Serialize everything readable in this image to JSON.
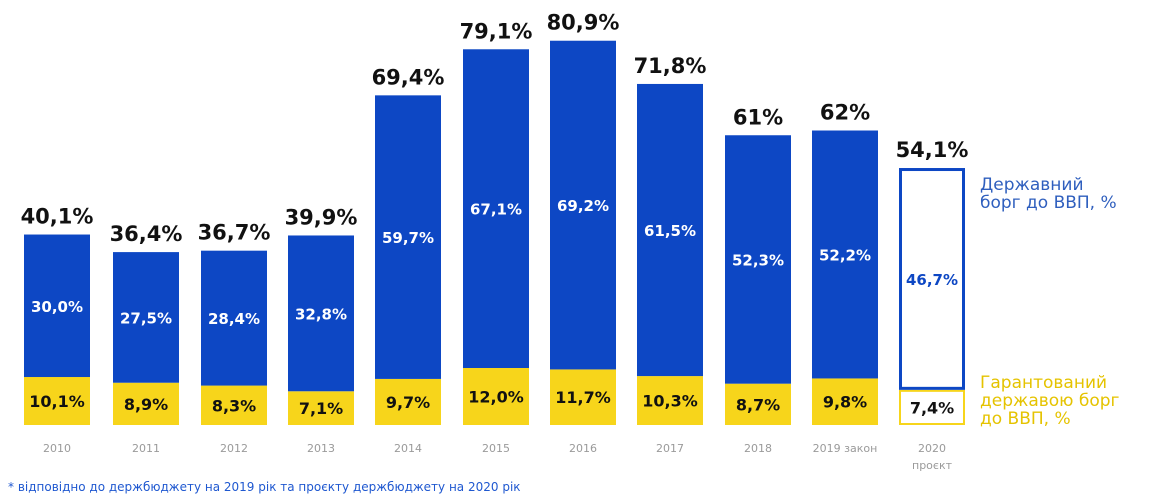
{
  "chart_data": {
    "type": "bar",
    "stacked": true,
    "categories": [
      "2010",
      "2011",
      "2012",
      "2013",
      "2014",
      "2015",
      "2016",
      "2017",
      "2018",
      "2019 закон",
      "2020 проєкт"
    ],
    "totals": [
      "40,1%",
      "36,4%",
      "36,7%",
      "39,9%",
      "69,4%",
      "79,1%",
      "80,9%",
      "71,8%",
      "61%",
      "62%",
      "54,1%"
    ],
    "total_values": [
      40.1,
      36.4,
      36.7,
      39.9,
      69.4,
      79.1,
      80.9,
      71.8,
      61,
      62,
      54.1
    ],
    "series": [
      {
        "name": "Гарантований державою борг до ВВП, %",
        "color": "#f7d51b",
        "values": [
          10.1,
          8.9,
          8.3,
          7.1,
          9.7,
          12.0,
          11.7,
          10.3,
          8.7,
          9.8,
          7.4
        ],
        "labels": [
          "10,1%",
          "8,9%",
          "8,3%",
          "7,1%",
          "9,7%",
          "12,0%",
          "11,7%",
          "10,3%",
          "8,7%",
          "9,8%",
          "7,4%"
        ]
      },
      {
        "name": "Державний борг до ВВП, %",
        "color": "#0d47c4",
        "values": [
          30.0,
          27.5,
          28.4,
          32.8,
          59.7,
          67.1,
          69.2,
          61.5,
          52.3,
          52.2,
          46.7
        ],
        "labels": [
          "30,0%",
          "27,5%",
          "28,4%",
          "32,8%",
          "59,7%",
          "67,1%",
          "69,2%",
          "61,5%",
          "52,3%",
          "52,2%",
          "46,7%"
        ]
      }
    ],
    "projected_last": true,
    "legend_placement": "right",
    "grid": false
  },
  "legend": {
    "public_debt": "Державний\nборг до ВВП, %",
    "guaranteed_debt": "Гарантований\nдержавою борг\nдо ВВП, %"
  },
  "footnote": "* відповідно до держбюджету на 2019 рік та проєкту держбюджету на 2020 рік"
}
